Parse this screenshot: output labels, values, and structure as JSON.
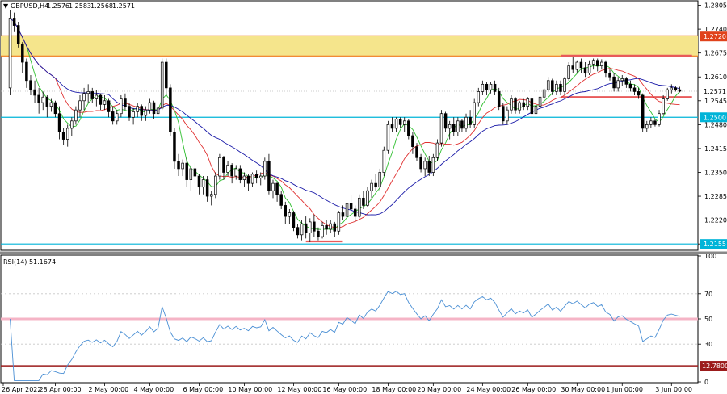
{
  "chart_data": [
    {
      "type": "candlestick",
      "symbol": "GBPUSD,H4",
      "ohlc_header": [
        "1.2576",
        "1.2583",
        "1.2568",
        "1.2571"
      ],
      "ylim": [
        1.214,
        1.2815
      ],
      "price_ticks": [
        "1.2805",
        "1.2740",
        "1.2675",
        "1.2610",
        "1.2545",
        "1.2480",
        "1.2415",
        "1.2350",
        "1.2285",
        "1.2220",
        "1.2155"
      ],
      "time_ticks": [
        "26 Apr 2022",
        "28 Apr 00:00",
        "2 May 00:00",
        "4 May 00:00",
        "6 May 00:00",
        "10 May 00:00",
        "12 May 00:00",
        "16 May 00:00",
        "18 May 00:00",
        "20 May 00:00",
        "24 May 00:00",
        "26 May 00:00",
        "30 May 00:00",
        "1 Jun 00:00",
        "3 Jun 00:00"
      ],
      "current_price": "1.2571",
      "supply_zone": {
        "low": 1.2667,
        "high": 1.2722,
        "label": "1.2720",
        "color": "#f5e58c"
      },
      "support_line": {
        "value": 1.2155,
        "label": "1.2155",
        "color": "#00b4d8"
      },
      "mid_line": {
        "value": 1.25,
        "label": "1.2500",
        "color": "#00b4d8"
      },
      "highlight_lines": [
        {
          "value": 1.2668,
          "from_index": 134,
          "to_index": 166,
          "color": "#e85a5a"
        },
        {
          "value": 1.2555,
          "from_index": 134,
          "to_index": 166,
          "color": "#e85a5a"
        },
        {
          "value": 1.2162,
          "from_index": 72,
          "to_index": 81,
          "color": "#e85a5a"
        }
      ],
      "ma_colors": {
        "fast": "#2fbf2f",
        "mid": "#e03030",
        "slow": "#1a1aa8"
      },
      "candles": [
        [
          1.258,
          1.2793,
          1.256,
          1.277
        ],
        [
          1.277,
          1.2785,
          1.2732,
          1.275
        ],
        [
          1.275,
          1.276,
          1.269,
          1.27
        ],
        [
          1.27,
          1.2705,
          1.262,
          1.265
        ],
        [
          1.265,
          1.266,
          1.258,
          1.26
        ],
        [
          1.26,
          1.2615,
          1.256,
          1.2575
        ],
        [
          1.2575,
          1.26,
          1.254,
          1.256
        ],
        [
          1.256,
          1.258,
          1.251,
          1.254
        ],
        [
          1.254,
          1.257,
          1.252,
          1.2555
        ],
        [
          1.2555,
          1.256,
          1.25,
          1.253
        ],
        [
          1.253,
          1.255,
          1.2515,
          1.254
        ],
        [
          1.254,
          1.2545,
          1.25,
          1.251
        ],
        [
          1.251,
          1.253,
          1.244,
          1.246
        ],
        [
          1.246,
          1.247,
          1.2425,
          1.244
        ],
        [
          1.244,
          1.248,
          1.242,
          1.247
        ],
        [
          1.247,
          1.25,
          1.245,
          1.249
        ],
        [
          1.249,
          1.253,
          1.248,
          1.252
        ],
        [
          1.252,
          1.256,
          1.25,
          1.2545
        ],
        [
          1.2545,
          1.258,
          1.252,
          1.2565
        ],
        [
          1.2565,
          1.259,
          1.254,
          1.257
        ],
        [
          1.257,
          1.258,
          1.254,
          1.255
        ],
        [
          1.255,
          1.2575,
          1.253,
          1.256
        ],
        [
          1.256,
          1.2565,
          1.252,
          1.2535
        ],
        [
          1.2535,
          1.256,
          1.252,
          1.2545
        ],
        [
          1.2545,
          1.255,
          1.25,
          1.2515
        ],
        [
          1.2515,
          1.253,
          1.248,
          1.249
        ],
        [
          1.249,
          1.252,
          1.248,
          1.251
        ],
        [
          1.251,
          1.256,
          1.25,
          1.255
        ],
        [
          1.255,
          1.2565,
          1.252,
          1.253
        ],
        [
          1.253,
          1.254,
          1.249,
          1.25
        ],
        [
          1.25,
          1.2525,
          1.248,
          1.2515
        ],
        [
          1.2515,
          1.254,
          1.25,
          1.253
        ],
        [
          1.253,
          1.2535,
          1.249,
          1.2505
        ],
        [
          1.2505,
          1.253,
          1.249,
          1.252
        ],
        [
          1.252,
          1.255,
          1.251,
          1.254
        ],
        [
          1.254,
          1.2545,
          1.2495,
          1.251
        ],
        [
          1.251,
          1.253,
          1.25,
          1.2525
        ],
        [
          1.2525,
          1.266,
          1.252,
          1.265
        ],
        [
          1.265,
          1.266,
          1.256,
          1.258
        ],
        [
          1.258,
          1.259,
          1.245,
          1.246
        ],
        [
          1.246,
          1.247,
          1.236,
          1.238
        ],
        [
          1.238,
          1.24,
          1.234,
          1.236
        ],
        [
          1.236,
          1.2385,
          1.234,
          1.2375
        ],
        [
          1.2375,
          1.239,
          1.231,
          1.233
        ],
        [
          1.233,
          1.237,
          1.23,
          1.236
        ],
        [
          1.236,
          1.2375,
          1.232,
          1.234
        ],
        [
          1.234,
          1.2345,
          1.229,
          1.231
        ],
        [
          1.231,
          1.234,
          1.229,
          1.233
        ],
        [
          1.233,
          1.234,
          1.227,
          1.2285
        ],
        [
          1.2285,
          1.23,
          1.226,
          1.229
        ],
        [
          1.229,
          1.235,
          1.228,
          1.234
        ],
        [
          1.234,
          1.24,
          1.233,
          1.239
        ],
        [
          1.239,
          1.2395,
          1.233,
          1.235
        ],
        [
          1.235,
          1.238,
          1.234,
          1.237
        ],
        [
          1.237,
          1.2375,
          1.232,
          1.234
        ],
        [
          1.234,
          1.237,
          1.233,
          1.236
        ],
        [
          1.236,
          1.237,
          1.232,
          1.233
        ],
        [
          1.233,
          1.235,
          1.231,
          1.234
        ],
        [
          1.234,
          1.2345,
          1.23,
          1.232
        ],
        [
          1.232,
          1.235,
          1.231,
          1.2345
        ],
        [
          1.2345,
          1.2355,
          1.232,
          1.2335
        ],
        [
          1.2335,
          1.235,
          1.2315,
          1.234
        ],
        [
          1.234,
          1.239,
          1.233,
          1.238
        ],
        [
          1.238,
          1.24,
          1.229,
          1.23
        ],
        [
          1.23,
          1.233,
          1.228,
          1.232
        ],
        [
          1.232,
          1.2325,
          1.227,
          1.229
        ],
        [
          1.229,
          1.23,
          1.225,
          1.226
        ],
        [
          1.226,
          1.227,
          1.221,
          1.223
        ],
        [
          1.223,
          1.225,
          1.221,
          1.224
        ],
        [
          1.224,
          1.2245,
          1.219,
          1.22
        ],
        [
          1.22,
          1.221,
          1.217,
          1.218
        ],
        [
          1.218,
          1.222,
          1.2165,
          1.221
        ],
        [
          1.221,
          1.223,
          1.217,
          1.2185
        ],
        [
          1.2185,
          1.2225,
          1.216,
          1.2215
        ],
        [
          1.2215,
          1.2235,
          1.2175,
          1.219
        ],
        [
          1.219,
          1.22,
          1.2165,
          1.2175
        ],
        [
          1.2175,
          1.2215,
          1.217,
          1.2205
        ],
        [
          1.2205,
          1.222,
          1.218,
          1.2195
        ],
        [
          1.2195,
          1.222,
          1.2185,
          1.221
        ],
        [
          1.221,
          1.2215,
          1.2175,
          1.219
        ],
        [
          1.219,
          1.2245,
          1.218,
          1.224
        ],
        [
          1.224,
          1.226,
          1.222,
          1.223
        ],
        [
          1.223,
          1.2275,
          1.222,
          1.2265
        ],
        [
          1.2265,
          1.229,
          1.224,
          1.225
        ],
        [
          1.225,
          1.226,
          1.2215,
          1.223
        ],
        [
          1.223,
          1.229,
          1.2225,
          1.228
        ],
        [
          1.228,
          1.23,
          1.225,
          1.226
        ],
        [
          1.226,
          1.231,
          1.2255,
          1.23
        ],
        [
          1.23,
          1.233,
          1.228,
          1.232
        ],
        [
          1.232,
          1.2345,
          1.23,
          1.231
        ],
        [
          1.231,
          1.236,
          1.23,
          1.235
        ],
        [
          1.235,
          1.242,
          1.234,
          1.241
        ],
        [
          1.241,
          1.249,
          1.24,
          1.248
        ],
        [
          1.248,
          1.25,
          1.246,
          1.247
        ],
        [
          1.247,
          1.25,
          1.246,
          1.2495
        ],
        [
          1.2495,
          1.25,
          1.247,
          1.248
        ],
        [
          1.248,
          1.25,
          1.246,
          1.249
        ],
        [
          1.249,
          1.2495,
          1.244,
          1.245
        ],
        [
          1.245,
          1.246,
          1.24,
          1.242
        ],
        [
          1.242,
          1.243,
          1.238,
          1.239
        ],
        [
          1.239,
          1.24,
          1.235,
          1.236
        ],
        [
          1.236,
          1.239,
          1.234,
          1.238
        ],
        [
          1.238,
          1.2395,
          1.234,
          1.235
        ],
        [
          1.235,
          1.24,
          1.234,
          1.239
        ],
        [
          1.239,
          1.244,
          1.238,
          1.243
        ],
        [
          1.243,
          1.252,
          1.242,
          1.251
        ],
        [
          1.251,
          1.2515,
          1.246,
          1.247
        ],
        [
          1.247,
          1.249,
          1.244,
          1.248
        ],
        [
          1.248,
          1.25,
          1.245,
          1.246
        ],
        [
          1.246,
          1.25,
          1.245,
          1.249
        ],
        [
          1.249,
          1.2495,
          1.246,
          1.247
        ],
        [
          1.247,
          1.251,
          1.246,
          1.25
        ],
        [
          1.25,
          1.252,
          1.247,
          1.248
        ],
        [
          1.248,
          1.255,
          1.247,
          1.254
        ],
        [
          1.254,
          1.258,
          1.253,
          1.257
        ],
        [
          1.257,
          1.26,
          1.256,
          1.259
        ],
        [
          1.259,
          1.2595,
          1.256,
          1.2575
        ],
        [
          1.2575,
          1.2595,
          1.2565,
          1.259
        ],
        [
          1.259,
          1.26,
          1.256,
          1.257
        ],
        [
          1.257,
          1.258,
          1.252,
          1.253
        ],
        [
          1.253,
          1.254,
          1.248,
          1.249
        ],
        [
          1.249,
          1.253,
          1.248,
          1.252
        ],
        [
          1.252,
          1.256,
          1.251,
          1.255
        ],
        [
          1.255,
          1.2555,
          1.251,
          1.252
        ],
        [
          1.252,
          1.2545,
          1.251,
          1.254
        ],
        [
          1.254,
          1.255,
          1.252,
          1.253
        ],
        [
          1.253,
          1.2555,
          1.252,
          1.255
        ],
        [
          1.255,
          1.256,
          1.25,
          1.251
        ],
        [
          1.251,
          1.254,
          1.25,
          1.253
        ],
        [
          1.253,
          1.256,
          1.2525,
          1.2555
        ],
        [
          1.2555,
          1.258,
          1.254,
          1.2575
        ],
        [
          1.2575,
          1.261,
          1.257,
          1.26
        ],
        [
          1.26,
          1.2605,
          1.256,
          1.257
        ],
        [
          1.257,
          1.26,
          1.256,
          1.259
        ],
        [
          1.259,
          1.26,
          1.256,
          1.257
        ],
        [
          1.257,
          1.261,
          1.256,
          1.2605
        ],
        [
          1.2605,
          1.265,
          1.26,
          1.264
        ],
        [
          1.264,
          1.2665,
          1.262,
          1.263
        ],
        [
          1.263,
          1.2655,
          1.262,
          1.265
        ],
        [
          1.265,
          1.266,
          1.262,
          1.2635
        ],
        [
          1.2635,
          1.265,
          1.261,
          1.262
        ],
        [
          1.262,
          1.2655,
          1.2615,
          1.2645
        ],
        [
          1.2645,
          1.266,
          1.263,
          1.2655
        ],
        [
          1.2655,
          1.266,
          1.2625,
          1.264
        ],
        [
          1.264,
          1.2658,
          1.263,
          1.265
        ],
        [
          1.265,
          1.2655,
          1.261,
          1.262
        ],
        [
          1.262,
          1.263,
          1.26,
          1.261
        ],
        [
          1.261,
          1.262,
          1.257,
          1.258
        ],
        [
          1.258,
          1.261,
          1.257,
          1.26
        ],
        [
          1.26,
          1.2615,
          1.2585,
          1.2605
        ],
        [
          1.2605,
          1.261,
          1.258,
          1.259
        ],
        [
          1.259,
          1.26,
          1.257,
          1.258
        ],
        [
          1.258,
          1.259,
          1.256,
          1.257
        ],
        [
          1.257,
          1.258,
          1.255,
          1.256
        ],
        [
          1.256,
          1.2565,
          1.246,
          1.247
        ],
        [
          1.247,
          1.249,
          1.246,
          1.248
        ],
        [
          1.248,
          1.25,
          1.247,
          1.249
        ],
        [
          1.249,
          1.2495,
          1.2475,
          1.248
        ],
        [
          1.248,
          1.252,
          1.2475,
          1.251
        ],
        [
          1.251,
          1.256,
          1.2505,
          1.255
        ],
        [
          1.255,
          1.258,
          1.2545,
          1.2575
        ],
        [
          1.2575,
          1.259,
          1.2565,
          1.258
        ],
        [
          1.258,
          1.2585,
          1.257,
          1.2575
        ],
        [
          1.2575,
          1.2583,
          1.2568,
          1.2571
        ]
      ]
    },
    {
      "type": "line",
      "indicator": "RSI(14) 51.1674",
      "ylim": [
        0,
        100
      ],
      "ticks": [
        "100",
        "70",
        "50",
        "30",
        "0"
      ],
      "levels": [
        {
          "value": 50,
          "color": "#f5b4c6",
          "label": ""
        },
        {
          "value": 12.78,
          "color": "#9b1b1b",
          "label": "12.7800"
        }
      ],
      "line_color": "#4a8fd4"
    }
  ]
}
